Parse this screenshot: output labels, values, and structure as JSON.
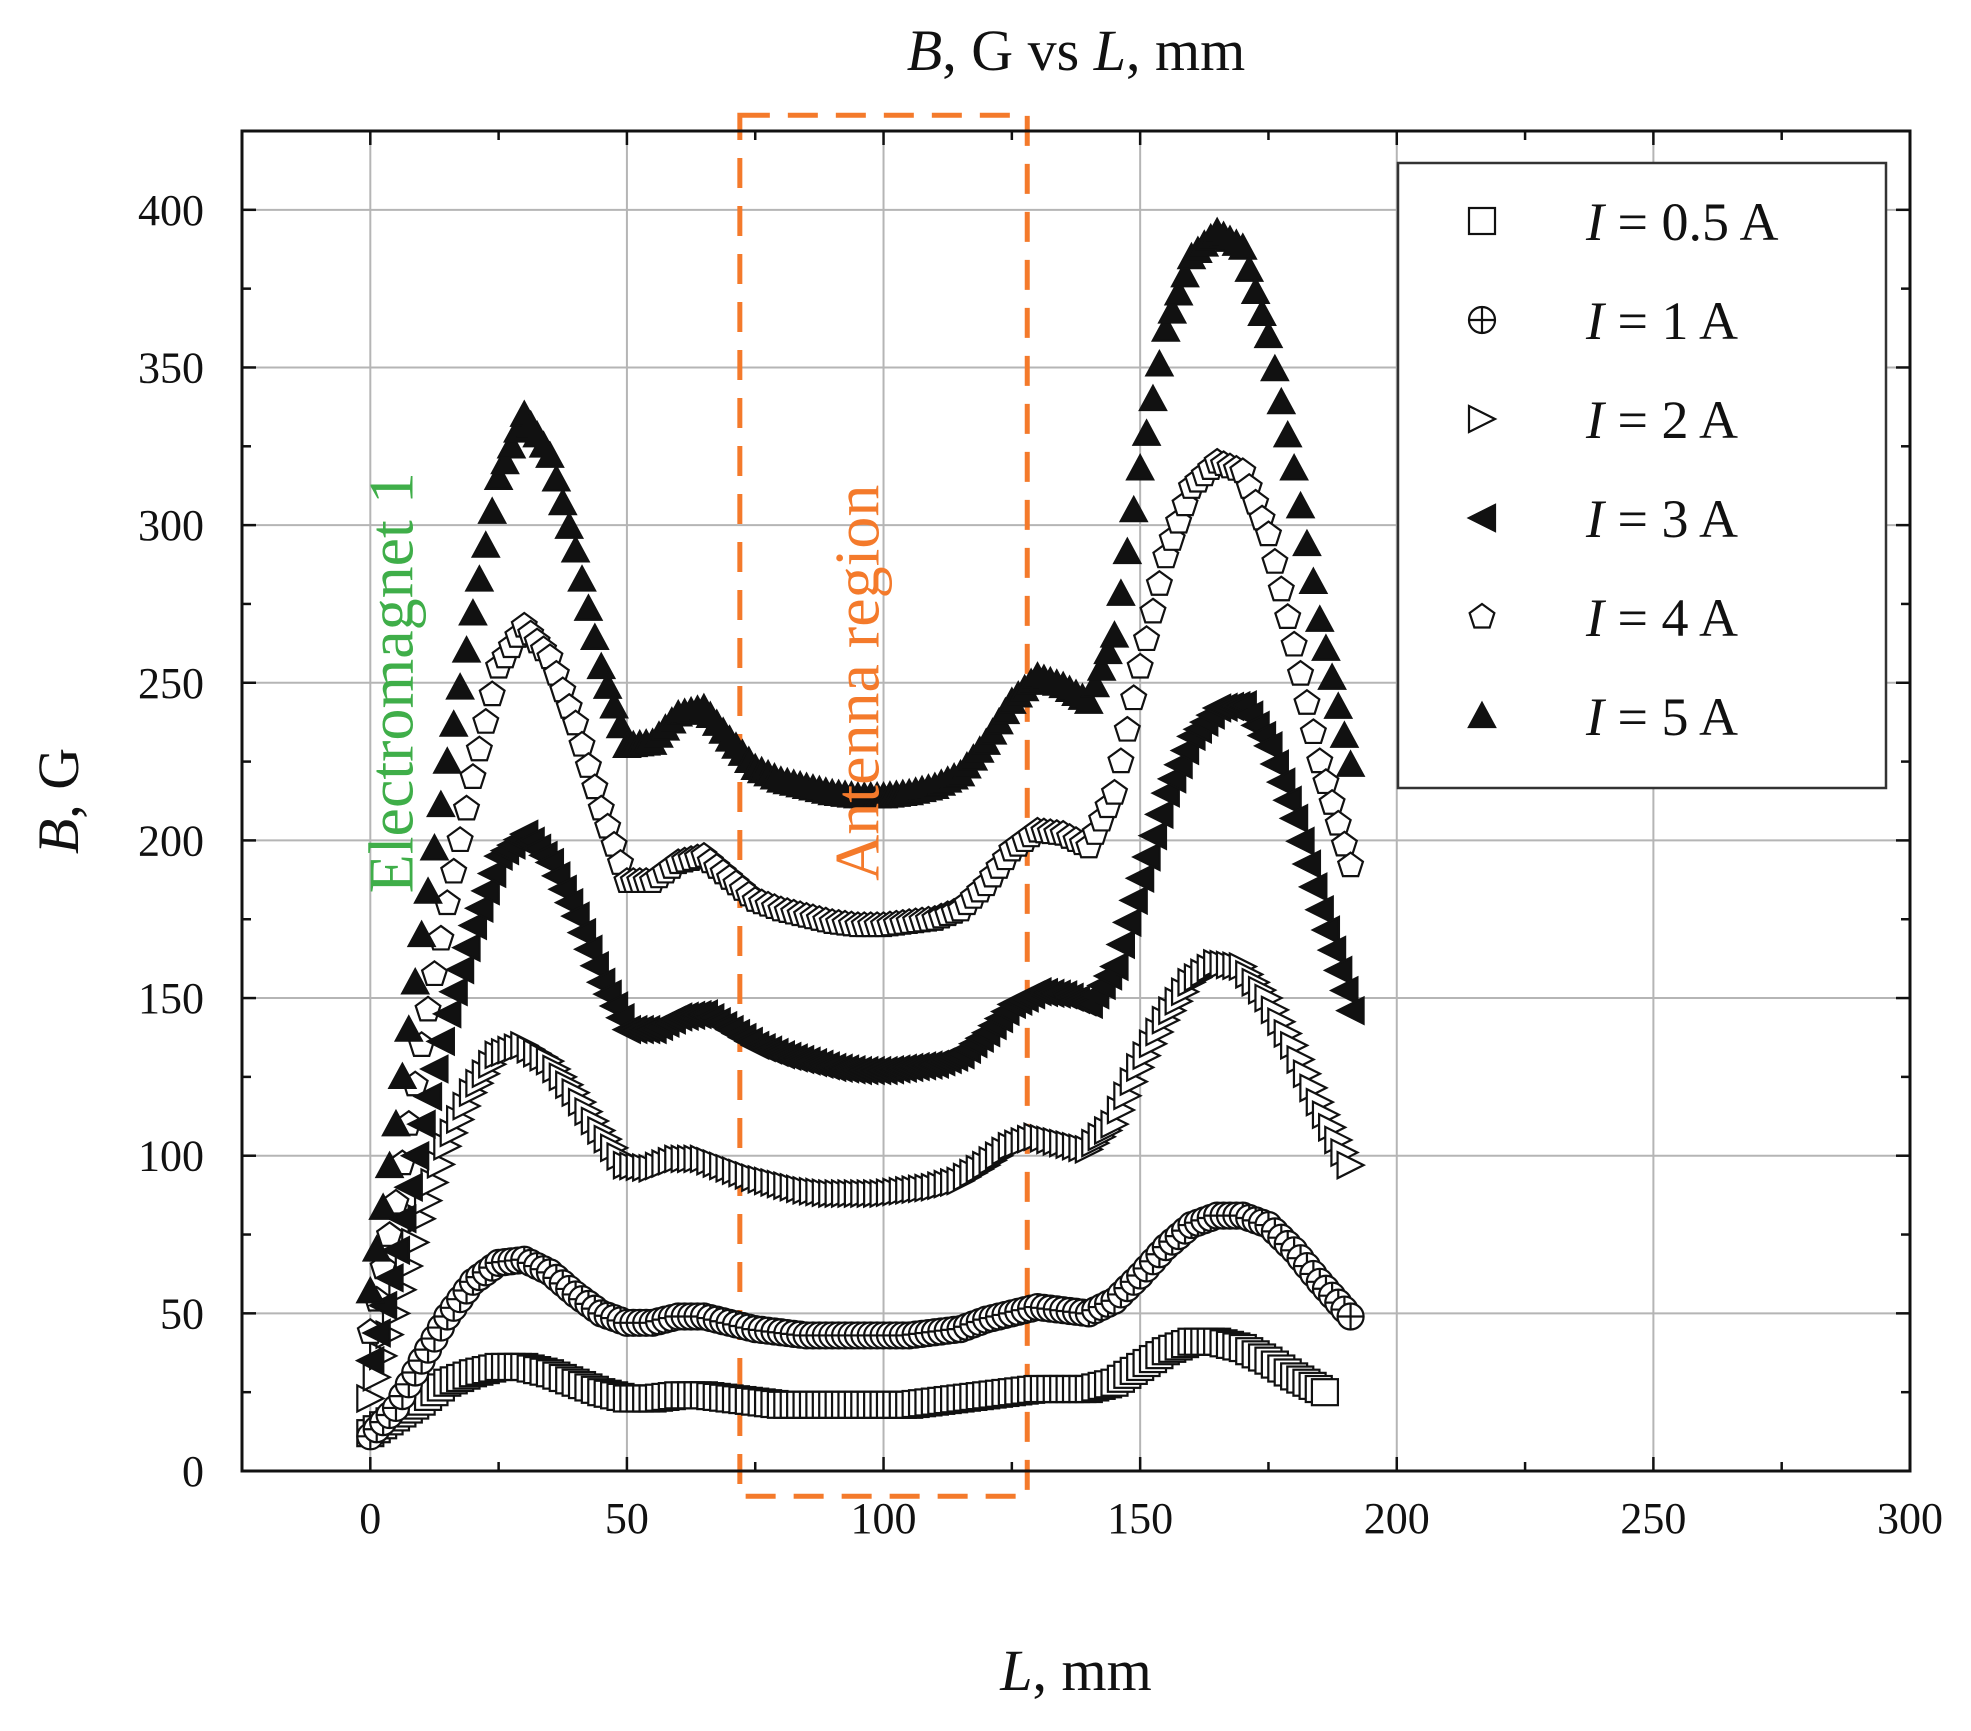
{
  "chart_data": {
    "type": "scatter",
    "title": "B, G vs L, mm",
    "title_parts": [
      {
        "text": "B",
        "italic": true
      },
      {
        "text": ", G vs ",
        "italic": false
      },
      {
        "text": "L",
        "italic": true
      },
      {
        "text": ", mm",
        "italic": false
      }
    ],
    "xlabel": "L, mm",
    "xlabel_parts": [
      {
        "text": "L",
        "italic": true
      },
      {
        "text": ", mm",
        "italic": false
      }
    ],
    "ylabel": "B, G",
    "ylabel_parts": [
      {
        "text": "B",
        "italic": true
      },
      {
        "text": ", G",
        "italic": false
      }
    ],
    "xlim": [
      -25,
      300
    ],
    "ylim": [
      0,
      425
    ],
    "xticks": [
      0,
      50,
      100,
      150,
      200,
      250,
      300
    ],
    "yticks": [
      0,
      50,
      100,
      150,
      200,
      250,
      300,
      350,
      400
    ],
    "grid": true,
    "legend_position": "top-right",
    "annotations": [
      {
        "text": "Electromagnet 1",
        "x": 2,
        "y": 250,
        "color": "#3fae49",
        "rotation": -90
      },
      {
        "text": "Antenna region",
        "x": 99,
        "y": 250,
        "color": "#f47a2b",
        "rotation": -90
      }
    ],
    "region": {
      "x0": 72,
      "x1": 128,
      "y0": -8,
      "y1": 430,
      "color": "#f47a2b",
      "style": "dashed"
    },
    "series": [
      {
        "name": "I = 0.5 A",
        "current": "0.5 A",
        "marker": "square",
        "fill": "open",
        "points": [
          [
            0,
            12
          ],
          [
            5,
            17
          ],
          [
            10,
            22
          ],
          [
            15,
            28
          ],
          [
            20,
            31
          ],
          [
            25,
            33
          ],
          [
            30,
            33
          ],
          [
            35,
            31
          ],
          [
            40,
            28
          ],
          [
            45,
            25
          ],
          [
            50,
            23
          ],
          [
            55,
            23
          ],
          [
            60,
            24
          ],
          [
            65,
            24
          ],
          [
            70,
            23
          ],
          [
            75,
            22
          ],
          [
            80,
            21
          ],
          [
            85,
            21
          ],
          [
            90,
            21
          ],
          [
            95,
            21
          ],
          [
            100,
            21
          ],
          [
            105,
            21
          ],
          [
            110,
            22
          ],
          [
            115,
            23
          ],
          [
            120,
            24
          ],
          [
            125,
            25
          ],
          [
            130,
            26
          ],
          [
            135,
            26
          ],
          [
            140,
            26
          ],
          [
            145,
            28
          ],
          [
            150,
            33
          ],
          [
            155,
            38
          ],
          [
            160,
            41
          ],
          [
            165,
            41
          ],
          [
            170,
            39
          ],
          [
            175,
            35
          ],
          [
            180,
            30
          ],
          [
            186,
            25
          ]
        ]
      },
      {
        "name": "I = 1 A",
        "current": "1 A",
        "marker": "crossed-circle",
        "fill": "open",
        "points": [
          [
            0,
            11
          ],
          [
            5,
            20
          ],
          [
            10,
            35
          ],
          [
            15,
            49
          ],
          [
            20,
            60
          ],
          [
            25,
            66
          ],
          [
            30,
            67
          ],
          [
            35,
            63
          ],
          [
            40,
            56
          ],
          [
            45,
            50
          ],
          [
            50,
            47
          ],
          [
            55,
            47
          ],
          [
            60,
            49
          ],
          [
            65,
            49
          ],
          [
            70,
            47
          ],
          [
            75,
            45
          ],
          [
            80,
            44
          ],
          [
            85,
            43
          ],
          [
            90,
            43
          ],
          [
            95,
            43
          ],
          [
            100,
            43
          ],
          [
            105,
            43
          ],
          [
            110,
            44
          ],
          [
            115,
            45
          ],
          [
            120,
            48
          ],
          [
            125,
            50
          ],
          [
            130,
            52
          ],
          [
            135,
            51
          ],
          [
            140,
            50
          ],
          [
            145,
            54
          ],
          [
            150,
            62
          ],
          [
            155,
            71
          ],
          [
            160,
            78
          ],
          [
            165,
            81
          ],
          [
            170,
            81
          ],
          [
            175,
            78
          ],
          [
            180,
            70
          ],
          [
            185,
            60
          ],
          [
            191,
            49
          ]
        ]
      },
      {
        "name": "I = 2 A",
        "current": "2 A",
        "marker": "triangle-right",
        "fill": "open",
        "points": [
          [
            0,
            23
          ],
          [
            5,
            50
          ],
          [
            10,
            80
          ],
          [
            15,
            103
          ],
          [
            20,
            120
          ],
          [
            25,
            132
          ],
          [
            30,
            135
          ],
          [
            35,
            130
          ],
          [
            40,
            120
          ],
          [
            45,
            108
          ],
          [
            50,
            97
          ],
          [
            55,
            96
          ],
          [
            60,
            99
          ],
          [
            65,
            99
          ],
          [
            70,
            96
          ],
          [
            75,
            93
          ],
          [
            80,
            91
          ],
          [
            85,
            89
          ],
          [
            90,
            88
          ],
          [
            95,
            88
          ],
          [
            100,
            88
          ],
          [
            105,
            89
          ],
          [
            110,
            90
          ],
          [
            115,
            92
          ],
          [
            120,
            97
          ],
          [
            125,
            103
          ],
          [
            130,
            106
          ],
          [
            135,
            104
          ],
          [
            140,
            102
          ],
          [
            145,
            110
          ],
          [
            150,
            128
          ],
          [
            155,
            143
          ],
          [
            160,
            155
          ],
          [
            165,
            161
          ],
          [
            170,
            160
          ],
          [
            175,
            150
          ],
          [
            180,
            135
          ],
          [
            185,
            117
          ],
          [
            191,
            97
          ]
        ]
      },
      {
        "name": "I = 3 A",
        "current": "3 A",
        "marker": "triangle-left",
        "fill": "solid",
        "points": [
          [
            0,
            35
          ],
          [
            5,
            70
          ],
          [
            10,
            110
          ],
          [
            15,
            145
          ],
          [
            20,
            173
          ],
          [
            25,
            195
          ],
          [
            30,
            202
          ],
          [
            35,
            193
          ],
          [
            40,
            176
          ],
          [
            45,
            155
          ],
          [
            50,
            140
          ],
          [
            55,
            140
          ],
          [
            60,
            144
          ],
          [
            65,
            145
          ],
          [
            70,
            140
          ],
          [
            75,
            135
          ],
          [
            80,
            132
          ],
          [
            85,
            130
          ],
          [
            90,
            128
          ],
          [
            95,
            127
          ],
          [
            100,
            127
          ],
          [
            105,
            128
          ],
          [
            110,
            129
          ],
          [
            115,
            132
          ],
          [
            120,
            139
          ],
          [
            125,
            148
          ],
          [
            130,
            152
          ],
          [
            135,
            151
          ],
          [
            140,
            148
          ],
          [
            145,
            160
          ],
          [
            150,
            188
          ],
          [
            155,
            215
          ],
          [
            160,
            233
          ],
          [
            165,
            242
          ],
          [
            170,
            243
          ],
          [
            175,
            230
          ],
          [
            180,
            207
          ],
          [
            185,
            178
          ],
          [
            191,
            146
          ]
        ]
      },
      {
        "name": "I = 4 A",
        "current": "4 A",
        "marker": "pentagon",
        "fill": "open",
        "points": [
          [
            0,
            44
          ],
          [
            5,
            85
          ],
          [
            10,
            135
          ],
          [
            15,
            180
          ],
          [
            20,
            220
          ],
          [
            25,
            255
          ],
          [
            30,
            268
          ],
          [
            35,
            258
          ],
          [
            40,
            237
          ],
          [
            45,
            210
          ],
          [
            50,
            187
          ],
          [
            55,
            187
          ],
          [
            60,
            193
          ],
          [
            65,
            195
          ],
          [
            70,
            188
          ],
          [
            75,
            181
          ],
          [
            80,
            178
          ],
          [
            85,
            176
          ],
          [
            90,
            174
          ],
          [
            95,
            173
          ],
          [
            100,
            173
          ],
          [
            105,
            174
          ],
          [
            110,
            175
          ],
          [
            115,
            178
          ],
          [
            120,
            186
          ],
          [
            125,
            197
          ],
          [
            130,
            203
          ],
          [
            135,
            202
          ],
          [
            140,
            198
          ],
          [
            145,
            215
          ],
          [
            150,
            255
          ],
          [
            155,
            290
          ],
          [
            160,
            312
          ],
          [
            165,
            320
          ],
          [
            170,
            317
          ],
          [
            175,
            297
          ],
          [
            180,
            262
          ],
          [
            185,
            225
          ],
          [
            191,
            192
          ]
        ]
      },
      {
        "name": "I = 5 A",
        "current": "5 A",
        "marker": "triangle-up",
        "fill": "solid",
        "points": [
          [
            0,
            57
          ],
          [
            5,
            110
          ],
          [
            10,
            170
          ],
          [
            15,
            225
          ],
          [
            20,
            272
          ],
          [
            25,
            315
          ],
          [
            30,
            335
          ],
          [
            35,
            322
          ],
          [
            40,
            292
          ],
          [
            45,
            255
          ],
          [
            50,
            230
          ],
          [
            55,
            231
          ],
          [
            60,
            240
          ],
          [
            65,
            242
          ],
          [
            70,
            232
          ],
          [
            75,
            223
          ],
          [
            80,
            219
          ],
          [
            85,
            217
          ],
          [
            90,
            215
          ],
          [
            95,
            214
          ],
          [
            100,
            214
          ],
          [
            105,
            215
          ],
          [
            110,
            217
          ],
          [
            115,
            221
          ],
          [
            120,
            231
          ],
          [
            125,
            244
          ],
          [
            130,
            252
          ],
          [
            135,
            249
          ],
          [
            140,
            244
          ],
          [
            145,
            265
          ],
          [
            150,
            318
          ],
          [
            155,
            362
          ],
          [
            160,
            385
          ],
          [
            165,
            393
          ],
          [
            170,
            388
          ],
          [
            175,
            360
          ],
          [
            180,
            318
          ],
          [
            185,
            270
          ],
          [
            191,
            224
          ]
        ]
      }
    ]
  }
}
